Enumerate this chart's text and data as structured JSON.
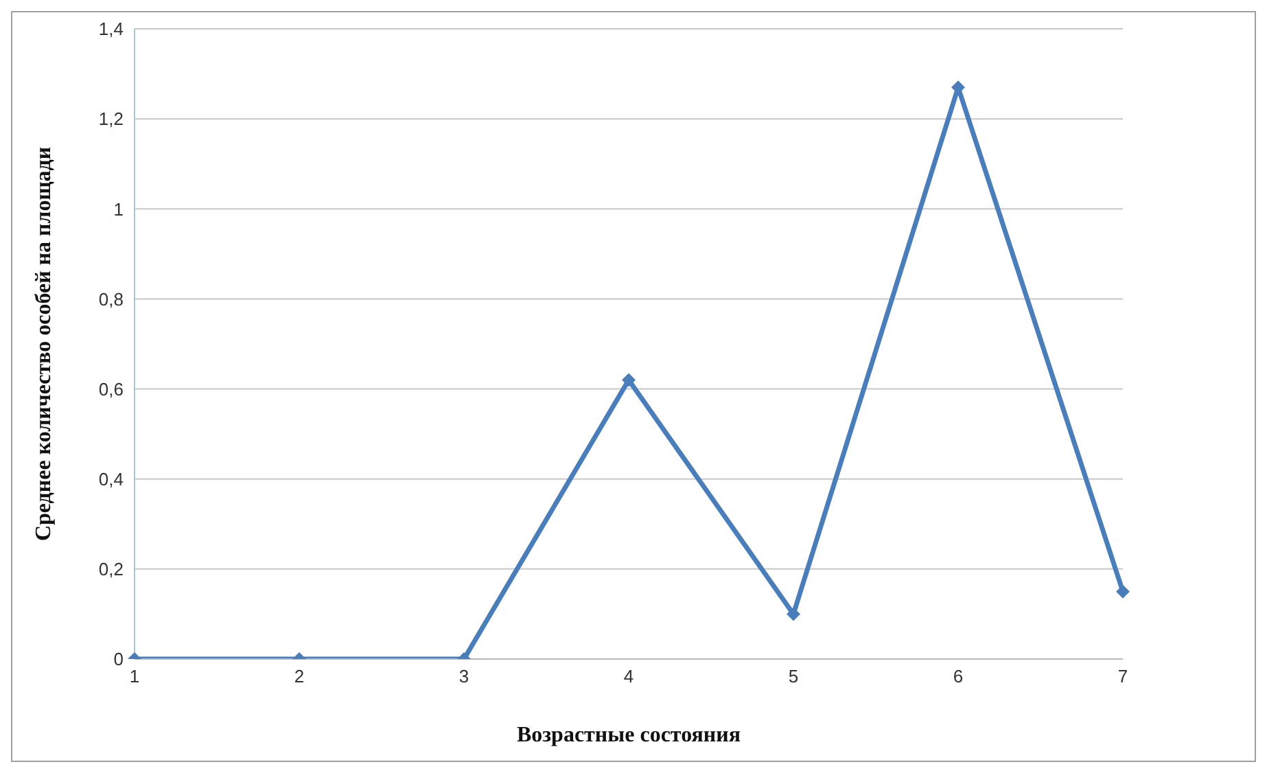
{
  "chart_data": {
    "type": "line",
    "xlabel": "Возрастные состояния",
    "ylabel": "Среднее количество особей на площади",
    "categories": [
      "1",
      "2",
      "3",
      "4",
      "5",
      "6",
      "7"
    ],
    "series": [
      {
        "color": "#4a7ebb",
        "values": [
          0,
          0,
          0,
          0.62,
          0.1,
          1.27,
          0.15
        ]
      }
    ],
    "ylim": [
      0,
      1.4
    ],
    "yticks": [
      0,
      {
        "value": 0.2,
        "label": "0,2"
      },
      {
        "value": 0.4,
        "label": "0,4"
      },
      {
        "value": 0.6,
        "label": "0,6"
      },
      {
        "value": 0.8,
        "label": "0,8"
      },
      1,
      {
        "value": 1.2,
        "label": "1,2"
      },
      {
        "value": 1.4,
        "label": "1,4"
      }
    ],
    "grid": "y",
    "marker": "diamond",
    "legend": false
  }
}
